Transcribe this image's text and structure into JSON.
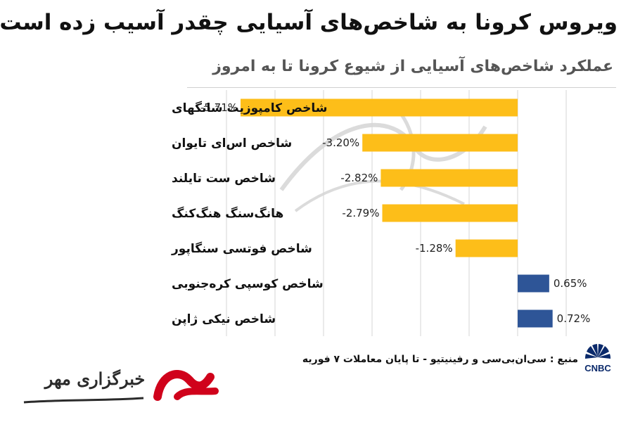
{
  "title": "ویروس کرونا به شاخص‌های آسیایی چقدر آسیب زده است؟",
  "subtitle": "عملکرد شاخص‌های آسیایی از شیوع کرونا تا به امروز",
  "source": "منبع : سی‌ان‌بی‌سی و رفینیتیو - تا پایان معاملات ۷ فوریه",
  "cnbc_logo_text": "CNBC",
  "mehr_logo_text": "خبرگزاری مهر",
  "colors": {
    "negative": "#FDBE19",
    "positive": "#2E5597",
    "grid": "#d6d6d6"
  },
  "chart_data": {
    "type": "bar",
    "orientation": "horizontal",
    "categories": [
      "شاخص کامپوزیت شانگهای",
      "شاخص اس‌ای تایوان",
      "شاخص ست تایلند",
      "هانگ‌سنگ هنگ‌کنگ",
      "شاخص فوتسی سنگاپور",
      "شاخص کوسپی کره‌جنوبی",
      "شاخص نیکی ژاپن"
    ],
    "values": [
      -5.71,
      -3.2,
      -2.82,
      -2.79,
      -1.28,
      0.65,
      0.72
    ],
    "value_labels": [
      "-5.71%",
      "-3.20%",
      "-2.82%",
      "-2.79%",
      "-1.28%",
      "0.65%",
      "0.72%"
    ],
    "xlim": [
      -6.0,
      1.5
    ],
    "grid": true,
    "legend": "none"
  }
}
